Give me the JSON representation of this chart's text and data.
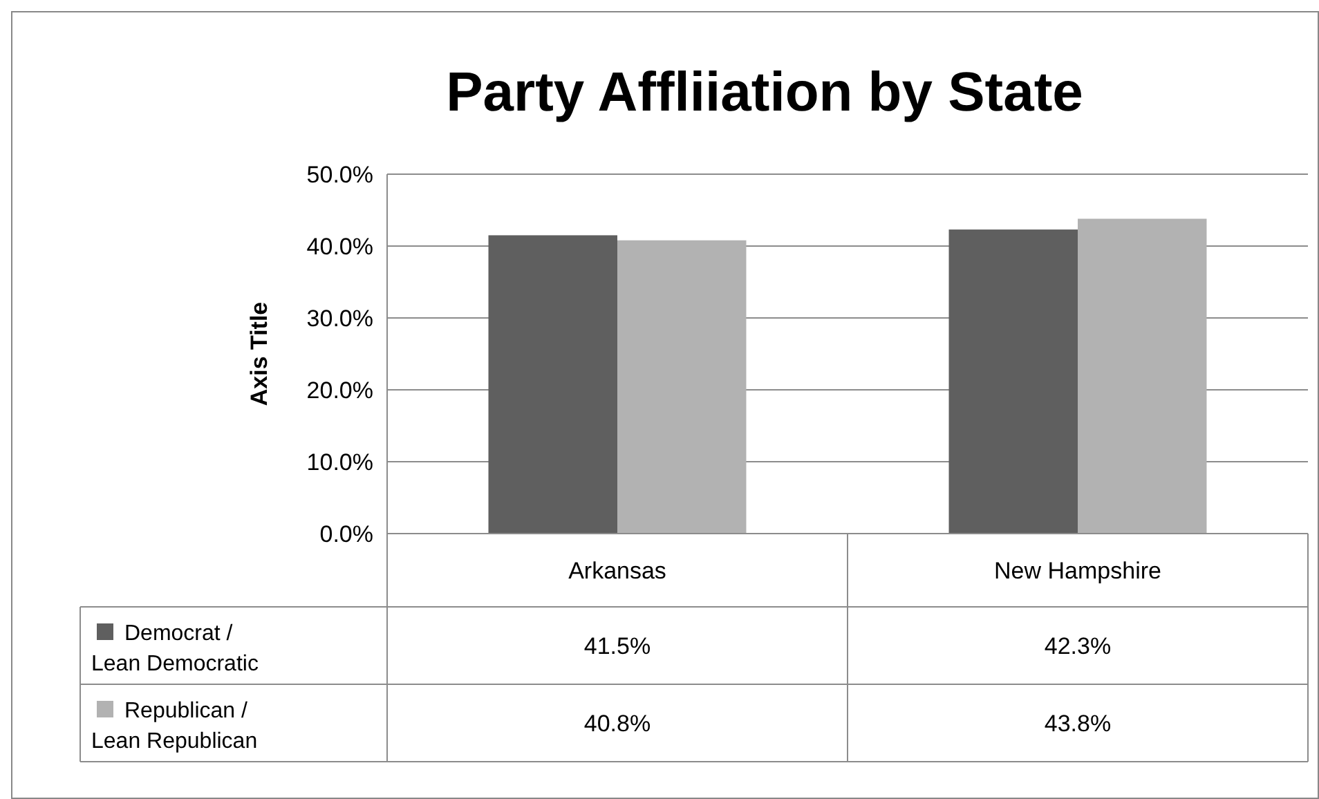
{
  "chart_data": {
    "type": "bar",
    "title": "Party Affliiation by State",
    "ylabel": "Axis Title",
    "categories": [
      "Arkansas",
      "New Hampshire"
    ],
    "series": [
      {
        "name": "Democrat / Lean Democratic",
        "color": "#5f5f5f",
        "values": [
          41.5,
          42.3
        ],
        "value_labels": [
          "41.5%",
          "42.3%"
        ]
      },
      {
        "name": "Republican / Lean Republican",
        "color": "#b2b2b2",
        "values": [
          40.8,
          43.8
        ],
        "value_labels": [
          "40.8%",
          "43.8%"
        ]
      }
    ],
    "ylim": [
      0,
      50
    ],
    "yticks": [
      {
        "value": 0,
        "label": "0.0%"
      },
      {
        "value": 10,
        "label": "10.0%"
      },
      {
        "value": 20,
        "label": "20.0%"
      },
      {
        "value": 30,
        "label": "30.0%"
      },
      {
        "value": 40,
        "label": "40.0%"
      },
      {
        "value": 50,
        "label": "50.0%"
      }
    ],
    "grid": "y",
    "legend": "bottom"
  }
}
